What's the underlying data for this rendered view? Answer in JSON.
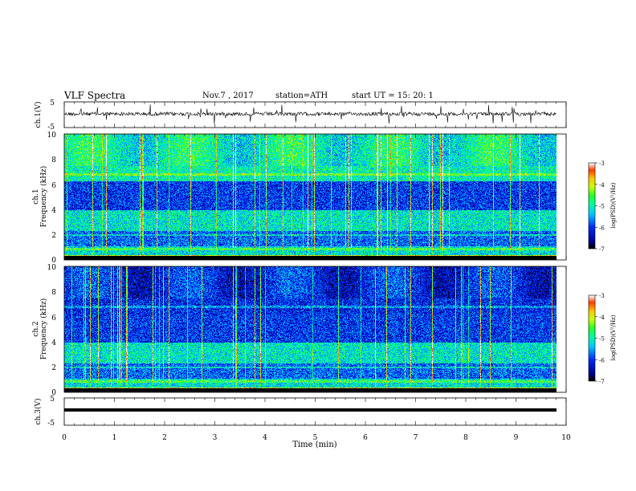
{
  "header": {
    "title": "VLF  Spectra",
    "date": "Nov.7  , 2017",
    "station": "station=ATH",
    "start": "start  UT  =    15: 20: 1"
  },
  "chart_data": [
    {
      "type": "line",
      "name": "ch1-waveform",
      "ylabel": "ch.1(V)",
      "ylim": [
        -5,
        5
      ],
      "yticks": [
        "5",
        "-5"
      ],
      "xlim": [
        0,
        10
      ]
    },
    {
      "type": "heatmap",
      "name": "ch1-spectrogram",
      "ylabel": "ch.1 Frequency (kHz)",
      "ylim": [
        0,
        10
      ],
      "yticks": [
        "0",
        "2",
        "4",
        "6",
        "8",
        "10"
      ],
      "xlim": [
        0,
        10
      ],
      "colorbar": {
        "label": "log(PSD)(V²/Hz)",
        "range": [
          -7,
          -3
        ],
        "ticks": [
          "-3",
          "-4",
          "-5",
          "-6",
          "-7"
        ]
      }
    },
    {
      "type": "heatmap",
      "name": "ch2-spectrogram",
      "ylabel": "ch.2 Frequency (kHz)",
      "ylim": [
        0,
        10
      ],
      "yticks": [
        "0",
        "2",
        "4",
        "6",
        "8",
        "10"
      ],
      "xlim": [
        0,
        10
      ],
      "colorbar": {
        "label": "log(PSD)(V²/Hz)",
        "range": [
          -7,
          -3
        ],
        "ticks": [
          "-3",
          "-4",
          "-5",
          "-6",
          "-7"
        ]
      }
    },
    {
      "type": "line",
      "name": "ch3-waveform",
      "ylabel": "ch.3(V)",
      "ylim": [
        -5,
        5
      ],
      "yticks": [
        "5",
        "-5"
      ],
      "xlim": [
        0,
        10
      ],
      "xlabel": "Time  (min)",
      "xticks": [
        "0",
        "1",
        "2",
        "3",
        "4",
        "5",
        "6",
        "7",
        "8",
        "9",
        "10"
      ]
    }
  ],
  "labels": {
    "ch1_volt": "ch.1(V)",
    "ch3_volt": "ch.3(V)",
    "ch1_freq_a": "ch.1",
    "ch1_freq_b": "Frequency  (kHz)",
    "ch2_freq_a": "ch.2",
    "ch2_freq_b": "Frequency  (kHz)",
    "cb_label": "log(PSD)(V²/Hz)",
    "xlabel": "Time  (min)"
  }
}
